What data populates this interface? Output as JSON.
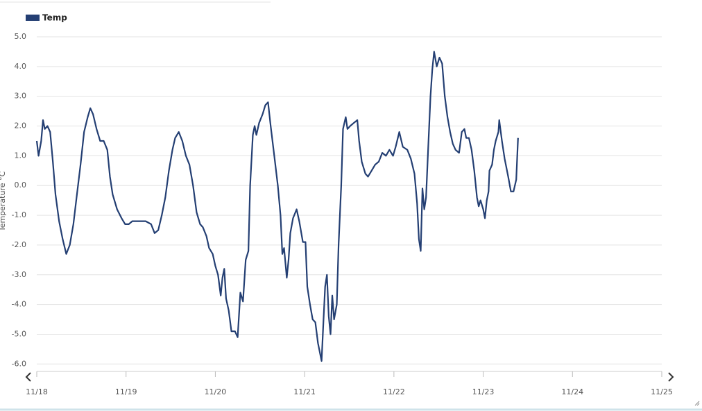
{
  "chart_data": {
    "type": "line",
    "ylabel": "Temperature °C",
    "xlim": [
      0,
      7
    ],
    "xticks": [
      {
        "value": 0,
        "label": "11/18"
      },
      {
        "value": 1,
        "label": "11/19"
      },
      {
        "value": 2,
        "label": "11/20"
      },
      {
        "value": 3,
        "label": "11/21"
      },
      {
        "value": 4,
        "label": "11/22"
      },
      {
        "value": 5,
        "label": "11/23"
      },
      {
        "value": 6,
        "label": "11/24"
      },
      {
        "value": 7,
        "label": "11/25"
      }
    ],
    "ylim": [
      -6.25,
      5
    ],
    "yticks": [
      {
        "value": 5,
        "label": "5.0"
      },
      {
        "value": 4,
        "label": "4.0"
      },
      {
        "value": 3,
        "label": "3.0"
      },
      {
        "value": 2,
        "label": "2.0"
      },
      {
        "value": 1,
        "label": "1.0"
      },
      {
        "value": 0,
        "label": "0.0"
      },
      {
        "value": -1,
        "label": "-1.0"
      },
      {
        "value": -2,
        "label": "-2.0"
      },
      {
        "value": -3,
        "label": "-3.0"
      },
      {
        "value": -4,
        "label": "-4.0"
      },
      {
        "value": -5,
        "label": "-5.0"
      },
      {
        "value": -6,
        "label": "-6.0"
      }
    ],
    "grid": true,
    "legend": "top-left",
    "x": [
      0,
      0.02,
      0.05,
      0.07,
      0.09,
      0.12,
      0.15,
      0.18,
      0.21,
      0.25,
      0.29,
      0.33,
      0.37,
      0.41,
      0.45,
      0.49,
      0.53,
      0.57,
      0.6,
      0.63,
      0.67,
      0.71,
      0.75,
      0.79,
      0.82,
      0.85,
      0.9,
      0.95,
      0.99,
      1.03,
      1.07,
      1.14,
      1.22,
      1.28,
      1.32,
      1.36,
      1.4,
      1.44,
      1.48,
      1.52,
      1.55,
      1.59,
      1.63,
      1.67,
      1.71,
      1.75,
      1.79,
      1.83,
      1.86,
      1.9,
      1.93,
      1.97,
      2,
      2.03,
      2.06,
      2.08,
      2.1,
      2.12,
      2.15,
      2.18,
      2.22,
      2.25,
      2.28,
      2.31,
      2.34,
      2.37,
      2.39,
      2.42,
      2.44,
      2.46,
      2.49,
      2.53,
      2.56,
      2.59,
      2.62,
      2.66,
      2.7,
      2.73,
      2.75,
      2.77,
      2.8,
      2.82,
      2.84,
      2.87,
      2.91,
      2.94,
      2.98,
      3.01,
      3.03,
      3.06,
      3.09,
      3.12,
      3.15,
      3.19,
      3.21,
      3.23,
      3.25,
      3.27,
      3.29,
      3.31,
      3.33,
      3.36,
      3.38,
      3.41,
      3.43,
      3.46,
      3.48,
      3.51,
      3.55,
      3.59,
      3.61,
      3.64,
      3.68,
      3.71,
      3.75,
      3.79,
      3.83,
      3.87,
      3.91,
      3.95,
      3.99,
      4.02,
      4.06,
      4.1,
      4.15,
      4.19,
      4.23,
      4.26,
      4.28,
      4.3,
      4.32,
      4.34,
      4.36,
      4.38,
      4.41,
      4.43,
      4.45,
      4.48,
      4.51,
      4.54,
      4.57,
      4.6,
      4.63,
      4.66,
      4.69,
      4.73,
      4.76,
      4.79,
      4.81,
      4.84,
      4.87,
      4.9,
      4.93,
      4.95,
      4.97,
      5,
      5.02,
      5.04,
      5.06,
      5.07,
      5.1,
      5.12,
      5.14,
      5.17,
      5.18,
      5.21,
      5.24,
      5.28,
      5.31,
      5.34,
      5.37,
      5.39
    ],
    "series": [
      {
        "name": "Temp",
        "color": "#243f73",
        "values": [
          1.5,
          1,
          1.5,
          2.2,
          1.9,
          2,
          1.8,
          0.8,
          -0.3,
          -1.2,
          -1.8,
          -2.3,
          -2,
          -1.3,
          -0.3,
          0.7,
          1.8,
          2.3,
          2.6,
          2.4,
          1.9,
          1.5,
          1.5,
          1.2,
          0.3,
          -0.3,
          -0.8,
          -1.1,
          -1.3,
          -1.3,
          -1.2,
          -1.2,
          -1.2,
          -1.3,
          -1.6,
          -1.5,
          -1,
          -0.4,
          0.5,
          1.2,
          1.6,
          1.8,
          1.5,
          1,
          0.7,
          0,
          -0.9,
          -1.3,
          -1.4,
          -1.7,
          -2.1,
          -2.3,
          -2.7,
          -3,
          -3.7,
          -3.1,
          -2.8,
          -3.8,
          -4.2,
          -4.9,
          -4.9,
          -5.1,
          -3.6,
          -3.9,
          -2.5,
          -2.2,
          0,
          1.7,
          2,
          1.7,
          2.1,
          2.4,
          2.7,
          2.8,
          2,
          1,
          0,
          -1,
          -2.3,
          -2.1,
          -3.1,
          -2.5,
          -1.6,
          -1.1,
          -0.8,
          -1.2,
          -1.9,
          -1.9,
          -3.4,
          -4,
          -4.5,
          -4.6,
          -5.3,
          -5.9,
          -4.6,
          -3.4,
          -3,
          -4.4,
          -5,
          -3.7,
          -4.5,
          -4,
          -2,
          0,
          1.9,
          2.3,
          1.9,
          2,
          2.1,
          2.2,
          1.5,
          0.8,
          0.4,
          0.3,
          0.5,
          0.7,
          0.8,
          1.1,
          1,
          1.2,
          1,
          1.3,
          1.8,
          1.3,
          1.2,
          0.9,
          0.4,
          -0.6,
          -1.8,
          -2.2,
          -0.1,
          -0.8,
          -0.4,
          1,
          3,
          3.9,
          4.5,
          4,
          4.3,
          4.1,
          3,
          2.3,
          1.8,
          1.4,
          1.2,
          1.1,
          1.8,
          1.9,
          1.6,
          1.6,
          1.2,
          0.5,
          -0.4,
          -0.7,
          -0.5,
          -0.8,
          -1.1,
          -0.5,
          -0.2,
          0.5,
          0.7,
          1.2,
          1.5,
          1.8,
          2.2,
          1.5,
          0.9,
          0.3,
          -0.2,
          -0.2,
          0.2,
          1.6
        ]
      }
    ]
  }
}
